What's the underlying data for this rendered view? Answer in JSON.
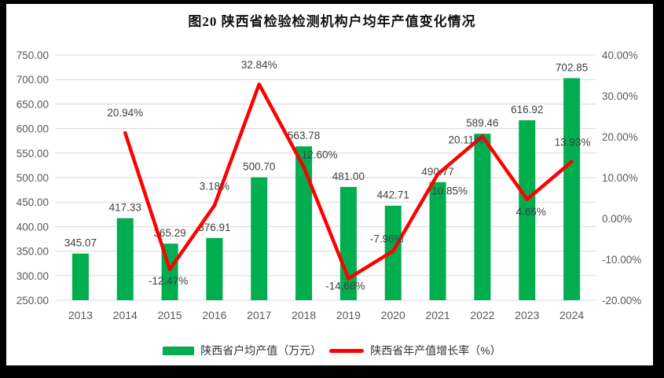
{
  "title": "图20  陕西省检验检测机构户均年产值变化情况",
  "colors": {
    "bar": "#00AE50",
    "line": "#FF0000",
    "gridline": "#D9D9D9",
    "axis_text": "#595959",
    "data_label": "#404040",
    "background": "#FFFFFF",
    "frame": "#000000"
  },
  "legend": [
    {
      "label": "陕西省户均产值（万元）",
      "color": "#00AE50",
      "type": "bar"
    },
    {
      "label": "陕西省年产值增长率（%）",
      "color": "#FF0000",
      "type": "line"
    }
  ],
  "chart_data": {
    "type": "bar+line combo",
    "title": "图20  陕西省检验检测机构户均年产值变化情况",
    "categories": [
      "2013",
      "2014",
      "2015",
      "2016",
      "2017",
      "2018",
      "2019",
      "2020",
      "2021",
      "2022",
      "2023",
      "2024"
    ],
    "series": [
      {
        "name": "陕西省户均产值（万元）",
        "type": "bar",
        "axis": "left",
        "color": "#00AE50",
        "values": [
          345.07,
          417.33,
          365.29,
          376.91,
          500.7,
          563.78,
          481.0,
          442.71,
          490.77,
          589.46,
          616.92,
          702.85
        ],
        "labels": [
          "345.07",
          "417.33",
          "365.29",
          "376.91",
          "500.70",
          "563.78",
          "481.00",
          "442.71",
          "490.77",
          "589.46",
          "616.92",
          "702.85"
        ]
      },
      {
        "name": "陕西省年产值增长率（%）",
        "type": "line",
        "axis": "right",
        "color": "#FF0000",
        "values": [
          null,
          20.94,
          -12.47,
          3.18,
          32.84,
          12.6,
          -14.68,
          -7.96,
          10.85,
          20.11,
          4.66,
          13.93
        ],
        "labels": [
          null,
          "20.94%",
          "-12.47%",
          "3.18%",
          "32.84%",
          "12.60%",
          "-14.68%",
          "-7.96%",
          "10.85%",
          "20.11%",
          "4.66%",
          "13.93%"
        ],
        "label_dx": [
          0,
          0,
          -2,
          0,
          0,
          20,
          -4,
          -8,
          15,
          -21,
          5,
          1
        ],
        "label_dy": [
          0,
          -21,
          19,
          -20,
          -20,
          -11,
          14,
          -11,
          26,
          9,
          20,
          -20
        ]
      }
    ],
    "left_axis": {
      "min": 250,
      "max": 750,
      "step": 50,
      "tick_labels": [
        "750.00",
        "700.00",
        "650.00",
        "600.00",
        "550.00",
        "500.00",
        "450.00",
        "400.00",
        "350.00",
        "300.00",
        "250.00"
      ]
    },
    "right_axis": {
      "min": -20,
      "max": 40,
      "step": 10,
      "tick_labels": [
        "40.00%",
        "30.00%",
        "20.00%",
        "10.00%",
        "0.00%",
        "-10.00%",
        "-20.00%"
      ]
    },
    "grid": true,
    "legend_position": "bottom"
  }
}
